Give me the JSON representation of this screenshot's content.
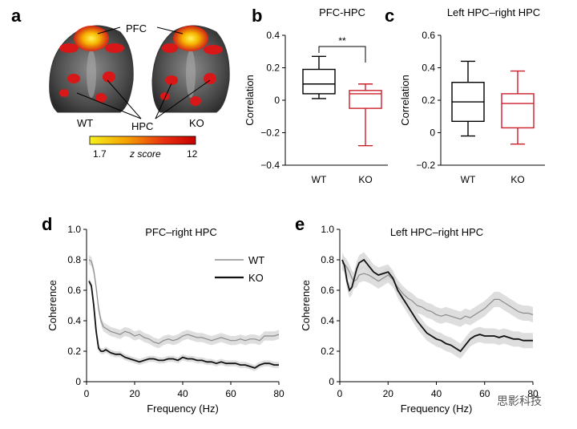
{
  "panel_labels": {
    "a": "a",
    "b": "b",
    "c": "c",
    "d": "d",
    "e": "e"
  },
  "brain_panel": {
    "pfc_label": "PFC",
    "hpc_label": "HPC",
    "wt_label": "WT",
    "ko_label": "KO",
    "colorbar_min": "1.7",
    "colorbar_label": "z score",
    "colorbar_max": "12",
    "colorbar_colors": [
      "#f5f01e",
      "#f5a000",
      "#e83010",
      "#c80000"
    ]
  },
  "watermark": "思影科技",
  "colors": {
    "wt": "#000000",
    "ko": "#cc1f2a",
    "wt_line": "#8c8c8c",
    "ko_line": "#111111",
    "band": "#d8d8d8"
  },
  "chart_data": [
    {
      "id": "b",
      "type": "box",
      "title": "PFC-HPC",
      "ylabel": "Correlation",
      "xlabel": "",
      "ylim": [
        -0.4,
        0.4
      ],
      "yticks": [
        "0.4",
        "0.2",
        "0",
        "−0.2",
        "−0.4"
      ],
      "ytick_values": [
        0.4,
        0.2,
        0,
        -0.2,
        -0.4
      ],
      "categories": [
        "WT",
        "KO"
      ],
      "boxes": [
        {
          "name": "WT",
          "min": 0.01,
          "q1": 0.04,
          "median": 0.1,
          "q3": 0.19,
          "max": 0.27
        },
        {
          "name": "KO",
          "min": -0.28,
          "q1": -0.05,
          "median": 0.04,
          "q3": 0.06,
          "max": 0.1
        }
      ],
      "significance": "**"
    },
    {
      "id": "c",
      "type": "box",
      "title": "Left HPC–right HPC",
      "ylabel": "Correlation",
      "xlabel": "",
      "ylim": [
        -0.2,
        0.6
      ],
      "yticks": [
        "0.6",
        "0.4",
        "0.2",
        "0",
        "−0.2"
      ],
      "ytick_values": [
        0.6,
        0.4,
        0.2,
        0,
        -0.2
      ],
      "categories": [
        "WT",
        "KO"
      ],
      "boxes": [
        {
          "name": "WT",
          "min": -0.02,
          "q1": 0.07,
          "median": 0.19,
          "q3": 0.31,
          "max": 0.44
        },
        {
          "name": "KO",
          "min": -0.07,
          "q1": 0.03,
          "median": 0.18,
          "q3": 0.24,
          "max": 0.38
        }
      ]
    },
    {
      "id": "d",
      "type": "line",
      "title": "PFC–right HPC",
      "xlabel": "Frequency (Hz)",
      "ylabel": "Coherence",
      "xlim": [
        0,
        80
      ],
      "ylim": [
        0,
        1.0
      ],
      "xticks": [
        0,
        20,
        40,
        60,
        80
      ],
      "yticks": [
        "1.0",
        "0.8",
        "0.6",
        "0.4",
        "0.2",
        "0"
      ],
      "ytick_values": [
        1.0,
        0.8,
        0.6,
        0.4,
        0.2,
        0
      ],
      "legend": [
        "WT",
        "KO"
      ],
      "legend_position": "top-right",
      "series": [
        {
          "name": "WT",
          "x": [
            1,
            2,
            3,
            4,
            5,
            6,
            7,
            8,
            9,
            10,
            12,
            14,
            16,
            18,
            20,
            22,
            24,
            26,
            28,
            30,
            32,
            34,
            36,
            38,
            40,
            42,
            44,
            46,
            48,
            50,
            52,
            54,
            56,
            58,
            60,
            62,
            64,
            66,
            68,
            70,
            72,
            74,
            76,
            78,
            80
          ],
          "y": [
            0.8,
            0.79,
            0.73,
            0.62,
            0.48,
            0.4,
            0.36,
            0.35,
            0.34,
            0.33,
            0.32,
            0.31,
            0.33,
            0.32,
            0.3,
            0.31,
            0.29,
            0.28,
            0.26,
            0.25,
            0.27,
            0.28,
            0.27,
            0.28,
            0.3,
            0.31,
            0.3,
            0.29,
            0.29,
            0.28,
            0.27,
            0.28,
            0.29,
            0.28,
            0.27,
            0.27,
            0.28,
            0.27,
            0.28,
            0.28,
            0.27,
            0.3,
            0.3,
            0.3,
            0.31
          ],
          "band": 0.03
        },
        {
          "name": "KO",
          "x": [
            1,
            2,
            3,
            4,
            5,
            6,
            7,
            8,
            9,
            10,
            12,
            14,
            16,
            18,
            20,
            22,
            24,
            26,
            28,
            30,
            32,
            34,
            36,
            38,
            40,
            42,
            44,
            46,
            48,
            50,
            52,
            54,
            56,
            58,
            60,
            62,
            64,
            66,
            68,
            70,
            72,
            74,
            76,
            78,
            80
          ],
          "y": [
            0.66,
            0.63,
            0.5,
            0.33,
            0.22,
            0.2,
            0.2,
            0.21,
            0.2,
            0.19,
            0.18,
            0.18,
            0.16,
            0.15,
            0.14,
            0.13,
            0.14,
            0.15,
            0.15,
            0.14,
            0.14,
            0.15,
            0.15,
            0.14,
            0.16,
            0.15,
            0.15,
            0.14,
            0.14,
            0.13,
            0.13,
            0.12,
            0.13,
            0.12,
            0.12,
            0.12,
            0.11,
            0.11,
            0.1,
            0.09,
            0.11,
            0.12,
            0.12,
            0.11,
            0.11
          ],
          "band": 0.02
        }
      ]
    },
    {
      "id": "e",
      "type": "line",
      "title": "Left HPC–right HPC",
      "xlabel": "Frequency (Hz)",
      "ylabel": "Coherence",
      "xlim": [
        0,
        80
      ],
      "ylim": [
        0,
        1.0
      ],
      "xticks": [
        0,
        20,
        40,
        60,
        80
      ],
      "yticks": [
        "1.0",
        "0.8",
        "0.6",
        "0.4",
        "0.2",
        "0"
      ],
      "ytick_values": [
        1.0,
        0.8,
        0.6,
        0.4,
        0.2,
        0
      ],
      "series": [
        {
          "name": "WT",
          "x": [
            1,
            2,
            3,
            4,
            5,
            6,
            7,
            8,
            10,
            12,
            14,
            16,
            18,
            20,
            22,
            24,
            26,
            28,
            30,
            32,
            34,
            36,
            38,
            40,
            42,
            44,
            46,
            48,
            50,
            52,
            54,
            56,
            58,
            60,
            62,
            64,
            66,
            68,
            70,
            72,
            74,
            76,
            78,
            80
          ],
          "y": [
            0.78,
            0.77,
            0.75,
            0.72,
            0.68,
            0.66,
            0.67,
            0.7,
            0.71,
            0.7,
            0.68,
            0.66,
            0.68,
            0.7,
            0.67,
            0.62,
            0.58,
            0.55,
            0.53,
            0.5,
            0.49,
            0.47,
            0.46,
            0.44,
            0.43,
            0.44,
            0.43,
            0.42,
            0.41,
            0.43,
            0.42,
            0.44,
            0.46,
            0.48,
            0.51,
            0.54,
            0.54,
            0.52,
            0.5,
            0.48,
            0.46,
            0.45,
            0.45,
            0.44
          ],
          "band": 0.05
        },
        {
          "name": "KO",
          "x": [
            1,
            2,
            3,
            4,
            5,
            6,
            7,
            8,
            10,
            12,
            14,
            16,
            18,
            20,
            22,
            24,
            26,
            28,
            30,
            32,
            34,
            36,
            38,
            40,
            42,
            44,
            46,
            48,
            50,
            52,
            54,
            56,
            58,
            60,
            62,
            64,
            66,
            68,
            70,
            72,
            74,
            76,
            78,
            80
          ],
          "y": [
            0.8,
            0.76,
            0.66,
            0.6,
            0.62,
            0.68,
            0.74,
            0.78,
            0.8,
            0.76,
            0.72,
            0.7,
            0.71,
            0.72,
            0.68,
            0.6,
            0.55,
            0.5,
            0.45,
            0.4,
            0.36,
            0.32,
            0.3,
            0.28,
            0.27,
            0.25,
            0.24,
            0.22,
            0.2,
            0.24,
            0.28,
            0.3,
            0.31,
            0.3,
            0.3,
            0.3,
            0.29,
            0.3,
            0.29,
            0.28,
            0.28,
            0.27,
            0.27,
            0.27
          ],
          "band": 0.05
        }
      ]
    }
  ]
}
